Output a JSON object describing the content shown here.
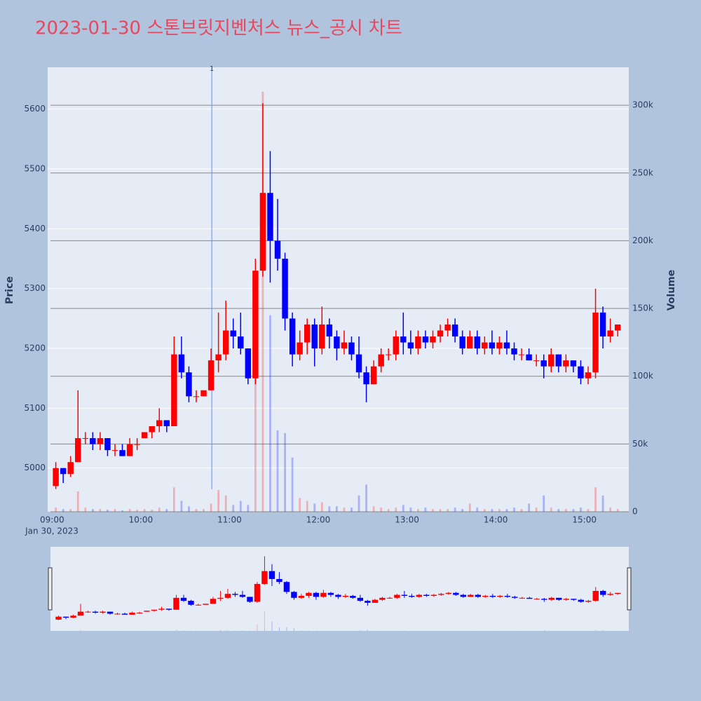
{
  "chart_data": {
    "type": "candlestick",
    "title": "2023-01-30 스톤브릿지벤처스 뉴스_공시 차트",
    "y_label": "Price",
    "y2_label": "Volume",
    "date_label": "Jan 30, 2023",
    "increasing_color": "#ff0000",
    "decreasing_color": "#0000ff",
    "x": [
      "09:00",
      "09:05",
      "09:10",
      "09:15",
      "09:20",
      "09:25",
      "09:30",
      "09:35",
      "09:40",
      "09:45",
      "09:50",
      "09:55",
      "10:00",
      "10:05",
      "10:10",
      "10:15",
      "10:20",
      "10:25",
      "10:30",
      "10:35",
      "10:40",
      "10:45",
      "10:50",
      "10:55",
      "11:00",
      "11:05",
      "11:10",
      "11:15",
      "11:20",
      "11:25",
      "11:30",
      "11:35",
      "11:40",
      "11:45",
      "11:50",
      "11:55",
      "12:00",
      "12:05",
      "12:10",
      "12:15",
      "12:20",
      "12:25",
      "12:30",
      "12:35",
      "12:40",
      "12:45",
      "12:50",
      "12:55",
      "13:00",
      "13:05",
      "13:10",
      "13:15",
      "13:20",
      "13:25",
      "13:30",
      "13:35",
      "13:40",
      "13:45",
      "13:50",
      "13:55",
      "14:00",
      "14:05",
      "14:10",
      "14:15",
      "14:20",
      "14:25",
      "14:30",
      "14:35",
      "14:40",
      "14:45",
      "14:50",
      "14:55",
      "15:00",
      "15:05",
      "15:10",
      "15:15",
      "15:20"
    ],
    "open": [
      4970,
      5000,
      4990,
      5010,
      5050,
      5050,
      5040,
      5050,
      5030,
      5030,
      5020,
      5040,
      5050,
      5060,
      5070,
      5080,
      5070,
      5190,
      5160,
      5120,
      5120,
      5130,
      5180,
      5190,
      5230,
      5220,
      5200,
      5150,
      5330,
      5460,
      5380,
      5350,
      5250,
      5190,
      5210,
      5240,
      5200,
      5240,
      5220,
      5200,
      5210,
      5190,
      5160,
      5140,
      5170,
      5190,
      5190,
      5220,
      5210,
      5200,
      5220,
      5210,
      5220,
      5230,
      5240,
      5220,
      5200,
      5220,
      5200,
      5210,
      5200,
      5210,
      5200,
      5190,
      5190,
      5180,
      5180,
      5170,
      5190,
      5170,
      5180,
      5170,
      5150,
      5160,
      5260,
      5220,
      5230
    ],
    "high": [
      5010,
      5000,
      5020,
      5130,
      5060,
      5060,
      5060,
      5050,
      5040,
      5040,
      5050,
      5050,
      5060,
      5070,
      5100,
      5080,
      5220,
      5220,
      5170,
      5130,
      5130,
      5200,
      5260,
      5280,
      5250,
      5260,
      5200,
      5350,
      5610,
      5530,
      5450,
      5360,
      5260,
      5230,
      5250,
      5250,
      5270,
      5250,
      5230,
      5230,
      5220,
      5220,
      5170,
      5180,
      5200,
      5200,
      5230,
      5260,
      5230,
      5230,
      5230,
      5230,
      5240,
      5250,
      5250,
      5230,
      5230,
      5230,
      5220,
      5230,
      5220,
      5230,
      5210,
      5200,
      5200,
      5190,
      5190,
      5200,
      5190,
      5190,
      5180,
      5180,
      5170,
      5300,
      5270,
      5250,
      5240
    ],
    "low": [
      4965,
      4975,
      4985,
      5010,
      5040,
      5030,
      5030,
      5020,
      5020,
      5020,
      5020,
      5030,
      5050,
      5050,
      5060,
      5060,
      5070,
      5150,
      5110,
      5110,
      5120,
      5130,
      5160,
      5180,
      5200,
      5190,
      5140,
      5140,
      5320,
      5310,
      5330,
      5230,
      5170,
      5180,
      5190,
      5170,
      5190,
      5200,
      5180,
      5190,
      5180,
      5150,
      5110,
      5140,
      5160,
      5180,
      5180,
      5190,
      5190,
      5190,
      5200,
      5200,
      5210,
      5220,
      5210,
      5190,
      5200,
      5190,
      5190,
      5190,
      5190,
      5190,
      5180,
      5180,
      5180,
      5170,
      5150,
      5160,
      5160,
      5160,
      5160,
      5140,
      5140,
      5150,
      5200,
      5210,
      5220
    ],
    "close": [
      5000,
      4990,
      5010,
      5050,
      5050,
      5040,
      5050,
      5030,
      5030,
      5020,
      5040,
      5040,
      5060,
      5070,
      5080,
      5070,
      5190,
      5160,
      5120,
      5120,
      5130,
      5180,
      5190,
      5230,
      5220,
      5200,
      5150,
      5330,
      5460,
      5380,
      5350,
      5250,
      5190,
      5210,
      5240,
      5200,
      5240,
      5220,
      5200,
      5210,
      5190,
      5160,
      5140,
      5170,
      5190,
      5190,
      5220,
      5210,
      5200,
      5220,
      5210,
      5220,
      5230,
      5240,
      5220,
      5200,
      5220,
      5200,
      5210,
      5200,
      5210,
      5200,
      5190,
      5190,
      5180,
      5180,
      5170,
      5190,
      5170,
      5180,
      5170,
      5150,
      5160,
      5260,
      5220,
      5230,
      5240
    ],
    "volume": [
      3000,
      2000,
      2000,
      15000,
      3000,
      2000,
      2000,
      1500,
      2000,
      1000,
      2000,
      1500,
      2000,
      1500,
      3000,
      2000,
      18000,
      8000,
      4000,
      2000,
      2000,
      6000,
      16000,
      12000,
      5000,
      8000,
      5000,
      100000,
      310000,
      145000,
      60000,
      58000,
      40000,
      10000,
      8000,
      6000,
      7000,
      4000,
      4000,
      3000,
      3000,
      12000,
      20000,
      4000,
      3000,
      2000,
      3000,
      5000,
      3000,
      2000,
      3000,
      2000,
      2000,
      2000,
      3000,
      2000,
      6000,
      3000,
      2000,
      2000,
      2000,
      2000,
      3000,
      2000,
      6000,
      3000,
      12000,
      3000,
      2000,
      2000,
      2000,
      3000,
      2000,
      18000,
      12000,
      3000,
      2000
    ],
    "xlim": [
      "08:57",
      "15:30"
    ],
    "xticks": [
      "09:00",
      "10:00",
      "11:00",
      "12:00",
      "13:00",
      "14:00",
      "15:00"
    ],
    "ylim": [
      4927,
      5670
    ],
    "yticks": [
      5000,
      5100,
      5200,
      5300,
      5400,
      5500,
      5600
    ],
    "y2lim": [
      0,
      328000
    ],
    "y2ticks": [
      0,
      {
        "value": 50000,
        "label": "50k"
      },
      {
        "value": 100000,
        "label": "100k"
      },
      {
        "value": 150000,
        "label": "150k"
      },
      {
        "value": 200000,
        "label": "200k"
      },
      {
        "value": 250000,
        "label": "250k"
      },
      {
        "value": 300000,
        "label": "300k"
      }
    ],
    "annotation": {
      "x": "10:48",
      "text": "1"
    }
  }
}
